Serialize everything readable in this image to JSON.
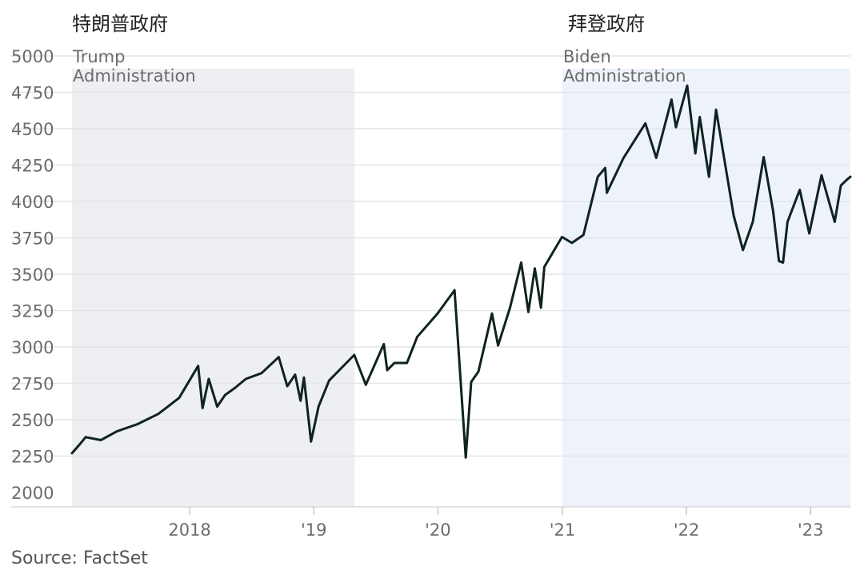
{
  "headings": {
    "trump_cn": "特朗普政府",
    "biden_cn": "拜登政府"
  },
  "source": "Source: FactSet",
  "colors": {
    "line": "#0f2320",
    "trump_shade": "#eeeff3",
    "biden_shade": "#eef3fb",
    "grid": "#e4e4e4",
    "tick_text": "#6b6b6b",
    "region_text": "#6b6b6b"
  },
  "chart_data": {
    "type": "line",
    "title": "",
    "xlabel": "",
    "ylabel": "",
    "xlim": [
      "2017-01-20",
      "2023-04-28"
    ],
    "ylim": [
      2000,
      5000
    ],
    "grid": true,
    "y_ticks": [
      "2000",
      "2250",
      "2500",
      "2750",
      "3000",
      "3250",
      "3500",
      "3750",
      "4000",
      "4250",
      "4500",
      "4750",
      "5000"
    ],
    "x_ticks": [
      {
        "date": "2018-01-01",
        "label": "2018"
      },
      {
        "date": "2019-01-01",
        "label": "'19"
      },
      {
        "date": "2020-01-01",
        "label": "'20"
      },
      {
        "date": "2021-01-01",
        "label": "'21"
      },
      {
        "date": "2022-01-01",
        "label": "'22"
      },
      {
        "date": "2023-01-01",
        "label": "'23"
      }
    ],
    "regions": [
      {
        "label_line1": "Trump",
        "label_line2": "Administration",
        "start": "2017-01-20",
        "end": "2019-05-01",
        "color_key": "trump_shade"
      },
      {
        "label_line1": "Biden",
        "label_line2": "Administration",
        "start": "2021-01-01",
        "end": "2023-04-28",
        "color_key": "biden_shade"
      }
    ],
    "series": [
      {
        "x": [
          "2017-01-20",
          "2017-02-15",
          "2017-03-01",
          "2017-04-15",
          "2017-06-01",
          "2017-08-01",
          "2017-10-01",
          "2017-12-01",
          "2018-01-26",
          "2018-02-08",
          "2018-02-26",
          "2018-03-23",
          "2018-04-15",
          "2018-05-15",
          "2018-06-15",
          "2018-07-31",
          "2018-09-20",
          "2018-10-15",
          "2018-11-07",
          "2018-11-23",
          "2018-12-03",
          "2018-12-24",
          "2019-01-15",
          "2019-02-15",
          "2019-04-30",
          "2019-06-03",
          "2019-07-26",
          "2019-08-05",
          "2019-08-26",
          "2019-10-02",
          "2019-11-01",
          "2019-12-31",
          "2020-02-19",
          "2020-03-23",
          "2020-04-08",
          "2020-04-29",
          "2020-06-08",
          "2020-06-26",
          "2020-07-31",
          "2020-09-02",
          "2020-09-23",
          "2020-10-12",
          "2020-10-30",
          "2020-11-09",
          "2020-12-31",
          "2021-01-29",
          "2021-03-04",
          "2021-04-15",
          "2021-05-07",
          "2021-05-12",
          "2021-06-30",
          "2021-09-02",
          "2021-10-04",
          "2021-11-18",
          "2021-12-01",
          "2022-01-03",
          "2022-01-27",
          "2022-02-09",
          "2022-03-08",
          "2022-03-29",
          "2022-05-20",
          "2022-06-16",
          "2022-07-15",
          "2022-08-16",
          "2022-09-13",
          "2022-09-30",
          "2022-10-12",
          "2022-10-25",
          "2022-11-30",
          "2022-12-28",
          "2023-02-02",
          "2023-03-13",
          "2023-03-31",
          "2023-04-18",
          "2023-04-28"
        ],
        "y": [
          2270,
          2340,
          2380,
          2360,
          2420,
          2470,
          2540,
          2650,
          2870,
          2580,
          2780,
          2590,
          2670,
          2720,
          2780,
          2820,
          2930,
          2730,
          2810,
          2630,
          2790,
          2350,
          2590,
          2770,
          2945,
          2740,
          3020,
          2840,
          2890,
          2890,
          3070,
          3230,
          3390,
          2240,
          2760,
          2830,
          3230,
          3010,
          3270,
          3580,
          3240,
          3540,
          3270,
          3550,
          3756,
          3715,
          3770,
          4170,
          4230,
          4060,
          4300,
          4537,
          4300,
          4700,
          4510,
          4796,
          4330,
          4580,
          4170,
          4630,
          3900,
          3666,
          3860,
          4305,
          3930,
          3590,
          3580,
          3860,
          4080,
          3780,
          4180,
          3860,
          4110,
          4150,
          4170
        ]
      }
    ]
  }
}
